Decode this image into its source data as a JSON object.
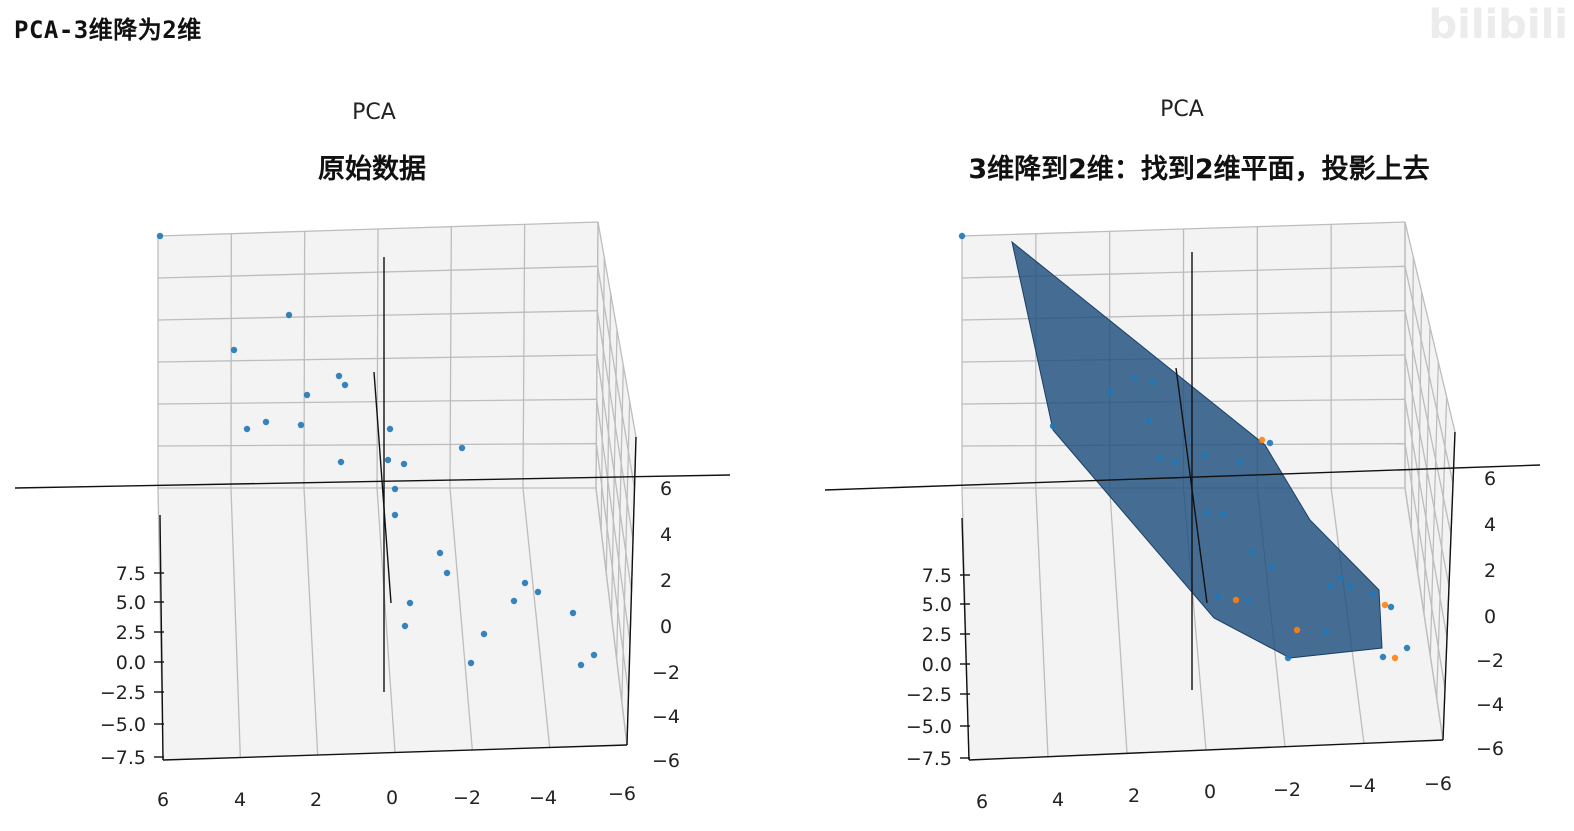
{
  "heading": "PCA-3维降为2维",
  "watermark": "bilibili",
  "colors": {
    "point": "#1f77b4",
    "point_orange": "#ff7f0e",
    "plane": "#1f4f7f"
  },
  "chart_data": [
    {
      "type": "scatter",
      "title": "PCA",
      "subtitle": "原始数据",
      "x_ticks": [
        "6",
        "4",
        "2",
        "0",
        "−2",
        "−4",
        "−6"
      ],
      "y_ticks": [
        "6",
        "4",
        "2",
        "0",
        "−2",
        "−4",
        "−6"
      ],
      "z_ticks": [
        "7.5",
        "5.0",
        "2.5",
        "0.0",
        "−2.5",
        "−5.0",
        "−7.5"
      ],
      "xlim": [
        -6,
        6
      ],
      "ylim": [
        -6,
        6
      ],
      "zlim": [
        -7.5,
        7.5
      ],
      "grid": true
    },
    {
      "type": "scatter",
      "title": "PCA",
      "subtitle": "3维降到2维：找到2维平面，投影上去",
      "x_ticks": [
        "6",
        "4",
        "2",
        "0",
        "−2",
        "−4",
        "−6"
      ],
      "y_ticks": [
        "6",
        "4",
        "2",
        "0",
        "−2",
        "−4",
        "−6"
      ],
      "z_ticks": [
        "7.5",
        "5.0",
        "2.5",
        "0.0",
        "−2.5",
        "−5.0",
        "−7.5"
      ],
      "xlim": [
        -6,
        6
      ],
      "ylim": [
        -6,
        6
      ],
      "zlim": [
        -7.5,
        7.5
      ],
      "grid": true
    }
  ]
}
